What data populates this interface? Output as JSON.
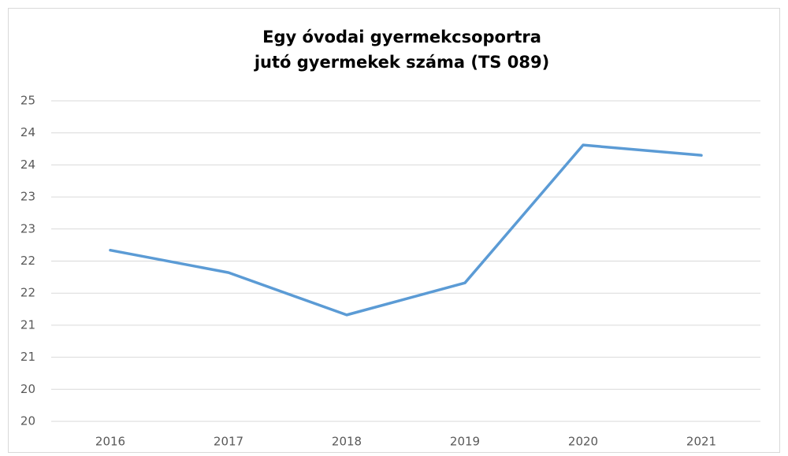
{
  "chart_data": {
    "type": "line",
    "title": [
      "Egy óvodai gyermekcsoportra",
      "jutó gyermekek száma (TS 089)"
    ],
    "categories": [
      "2016",
      "2017",
      "2018",
      "2019",
      "2020",
      "2021"
    ],
    "series": [
      {
        "color": "#5b9bd5",
        "values": [
          22.17,
          21.82,
          21.16,
          21.66,
          23.81,
          23.65
        ]
      }
    ],
    "ylim": [
      19.5,
      24.5
    ],
    "yticks": [
      {
        "value": 19.5,
        "label": "20"
      },
      20,
      {
        "value": 20.5,
        "label": "21"
      },
      21,
      {
        "value": 21.5,
        "label": "22"
      },
      22,
      {
        "value": 22.5,
        "label": "23"
      },
      23,
      {
        "value": 23.5,
        "label": "24"
      },
      24,
      {
        "value": 24.5,
        "label": "25"
      }
    ],
    "grid": true
  }
}
